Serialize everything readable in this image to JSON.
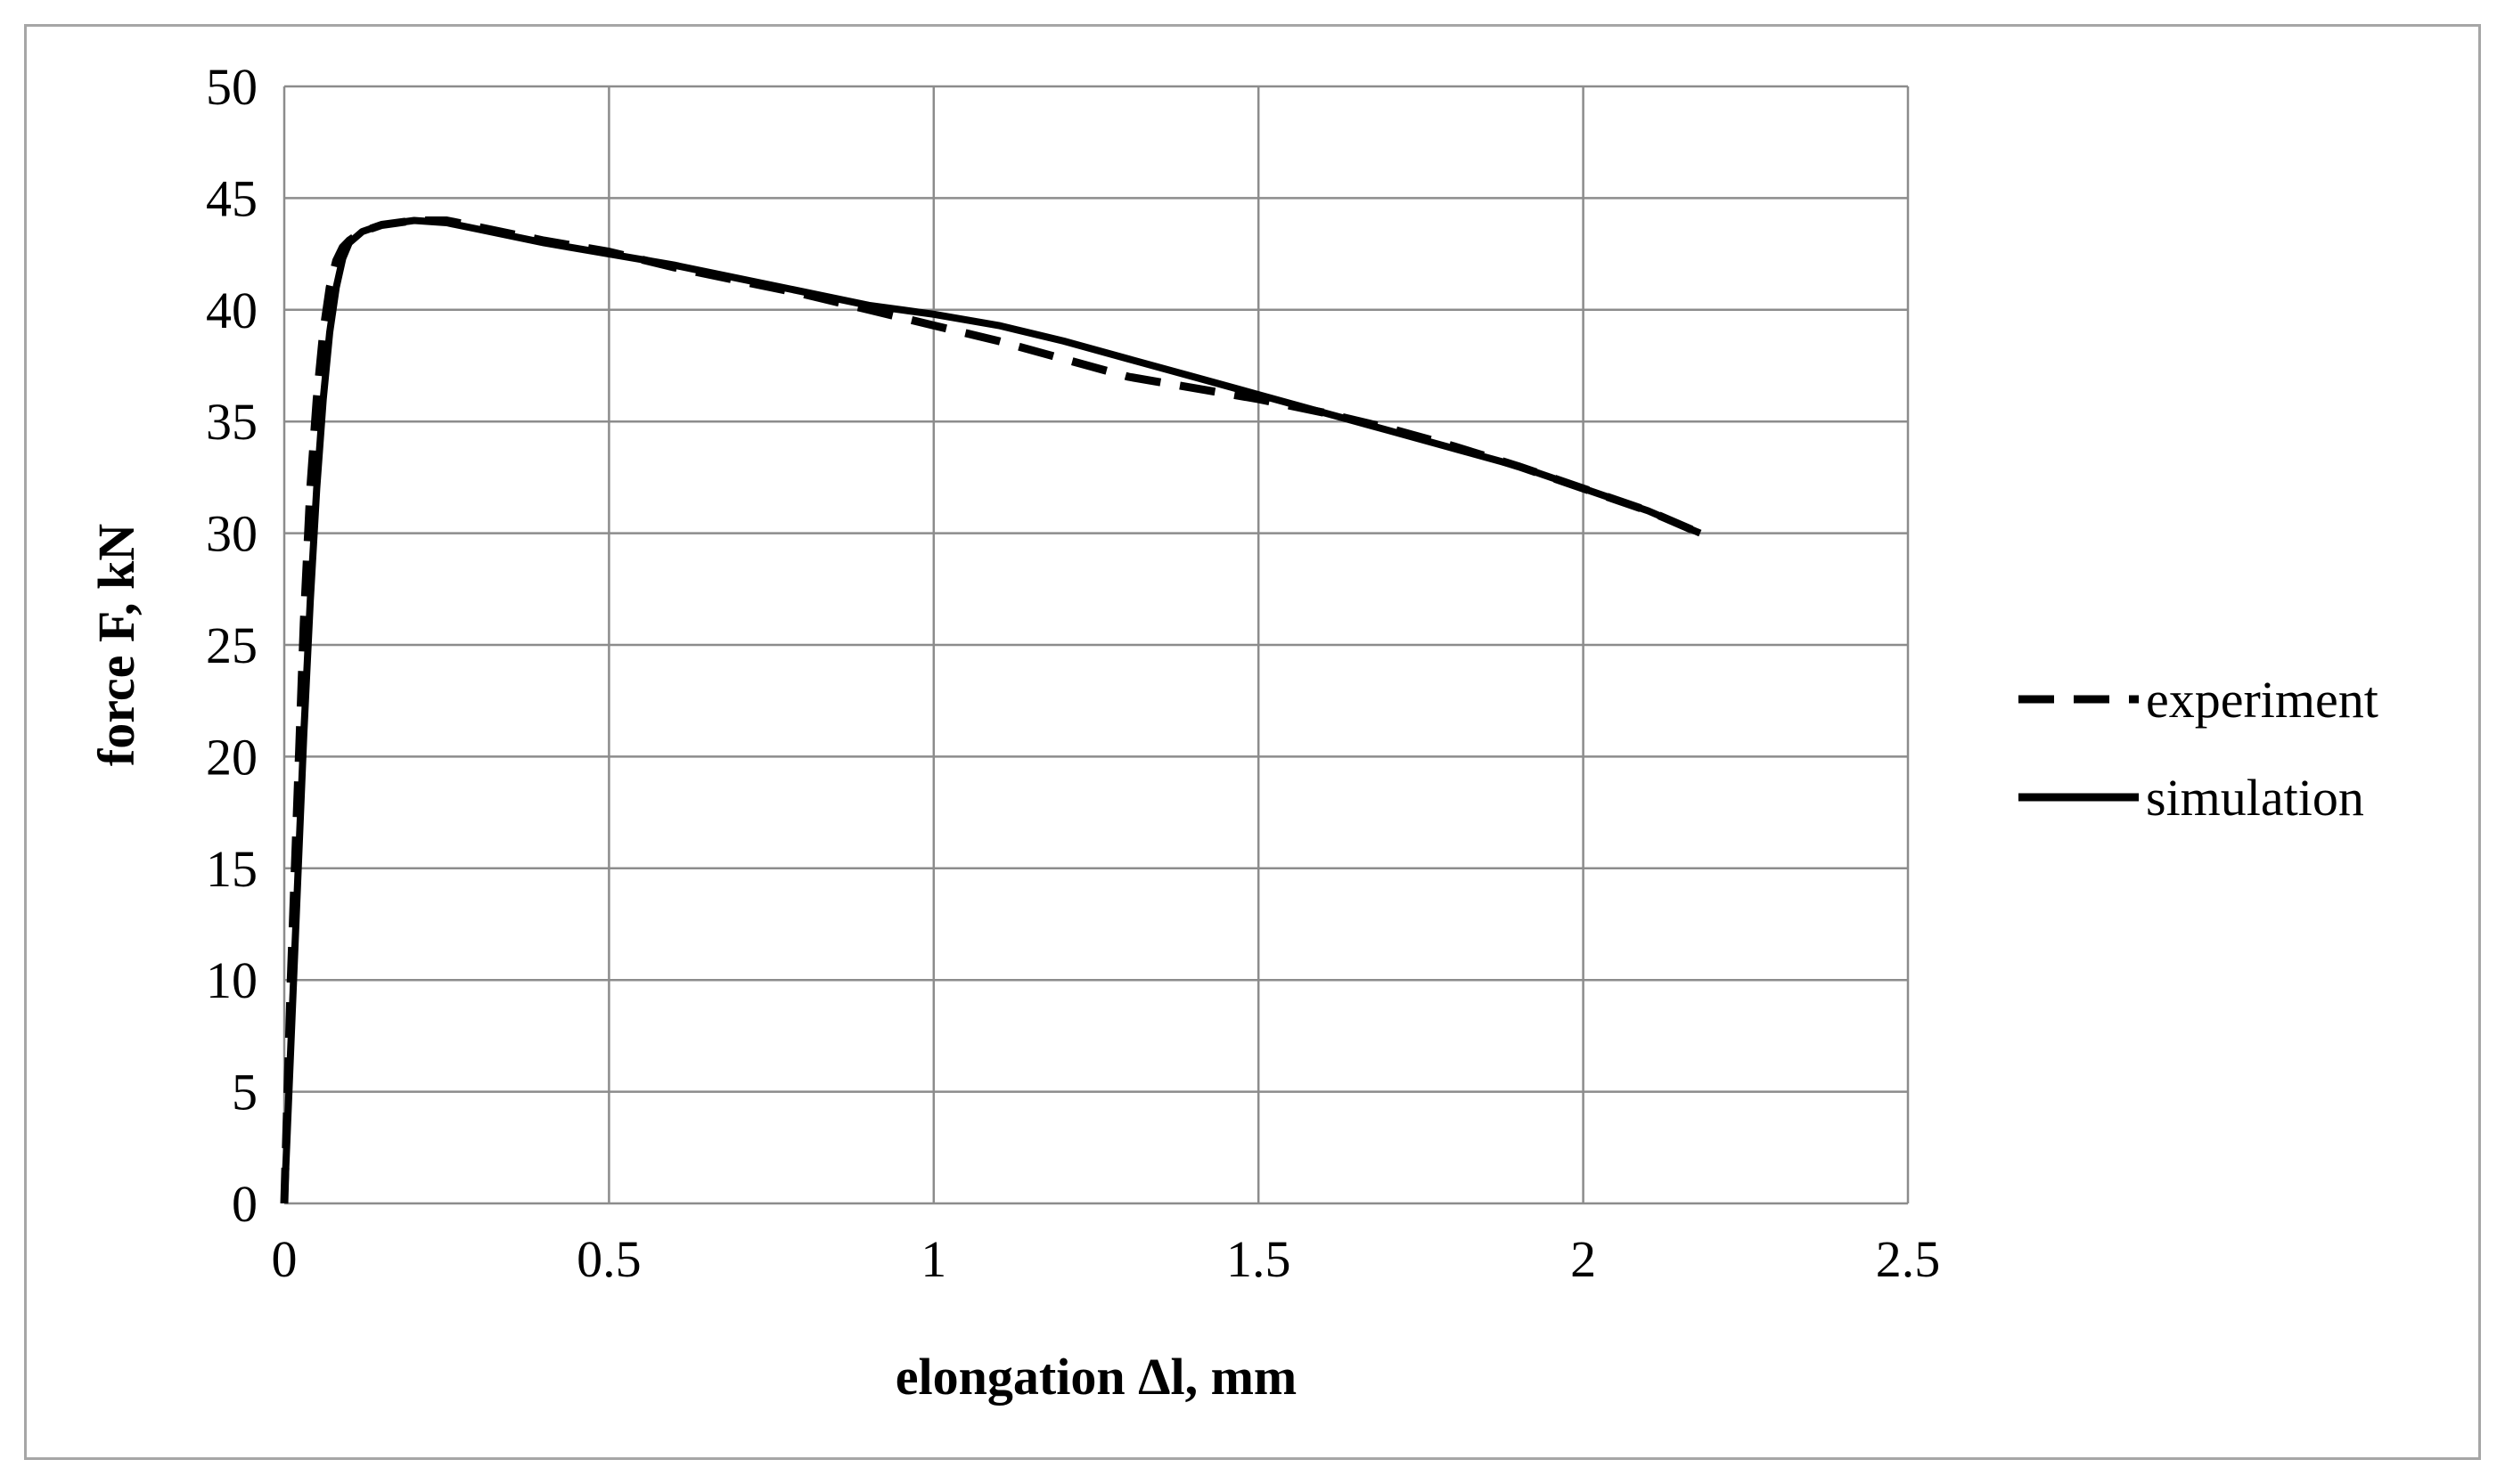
{
  "chart_data": {
    "type": "line",
    "title": "",
    "xlabel": "elongation Δl, mm",
    "ylabel": "force F, kN",
    "xlim": [
      0,
      2.5
    ],
    "ylim": [
      0,
      50
    ],
    "xticks": [
      0,
      0.5,
      1,
      1.5,
      2,
      2.5
    ],
    "xtick_labels": [
      "0",
      "0.5",
      "1",
      "1.5",
      "2",
      "2.5"
    ],
    "yticks": [
      0,
      5,
      10,
      15,
      20,
      25,
      30,
      35,
      40,
      45,
      50
    ],
    "ytick_labels": [
      "0",
      "5",
      "10",
      "15",
      "20",
      "25",
      "30",
      "35",
      "40",
      "45",
      "50"
    ],
    "grid": true,
    "legend_position": "right",
    "series": [
      {
        "name": "experiment",
        "style": "dashed",
        "color": "#000000",
        "x": [
          0,
          0.01,
          0.02,
          0.03,
          0.04,
          0.05,
          0.06,
          0.07,
          0.08,
          0.09,
          0.1,
          0.12,
          0.15,
          0.2,
          0.25,
          0.3,
          0.4,
          0.5,
          0.6,
          0.7,
          0.8,
          0.9,
          1.0,
          1.1,
          1.2,
          1.3,
          1.4,
          1.5,
          1.6,
          1.7,
          1.8,
          1.9,
          2.0,
          2.1,
          2.18
        ],
        "y": [
          0,
          10,
          18,
          26,
          32,
          36,
          39,
          41,
          42.2,
          42.8,
          43.1,
          43.5,
          43.8,
          44.0,
          44.0,
          43.7,
          43.1,
          42.6,
          41.9,
          41.3,
          40.7,
          40.0,
          39.3,
          38.6,
          37.8,
          37.0,
          36.5,
          36.0,
          35.4,
          34.7,
          33.9,
          33.0,
          32.0,
          31.0,
          30.0
        ]
      },
      {
        "name": "simulation",
        "style": "solid",
        "color": "#000000",
        "x": [
          0,
          0.01,
          0.02,
          0.03,
          0.04,
          0.05,
          0.06,
          0.07,
          0.08,
          0.09,
          0.1,
          0.12,
          0.15,
          0.2,
          0.25,
          0.3,
          0.4,
          0.5,
          0.6,
          0.7,
          0.8,
          0.9,
          1.0,
          1.1,
          1.2,
          1.3,
          1.4,
          1.5,
          1.6,
          1.7,
          1.8,
          1.9,
          2.0,
          2.1,
          2.18
        ],
        "y": [
          0,
          7,
          14,
          21,
          27,
          32,
          36,
          39,
          41,
          42.3,
          43.0,
          43.5,
          43.8,
          44.0,
          43.9,
          43.6,
          43.0,
          42.5,
          42.0,
          41.4,
          40.8,
          40.2,
          39.8,
          39.3,
          38.6,
          37.8,
          37.0,
          36.2,
          35.4,
          34.6,
          33.8,
          33.0,
          32.0,
          31.0,
          30.0
        ]
      }
    ]
  }
}
